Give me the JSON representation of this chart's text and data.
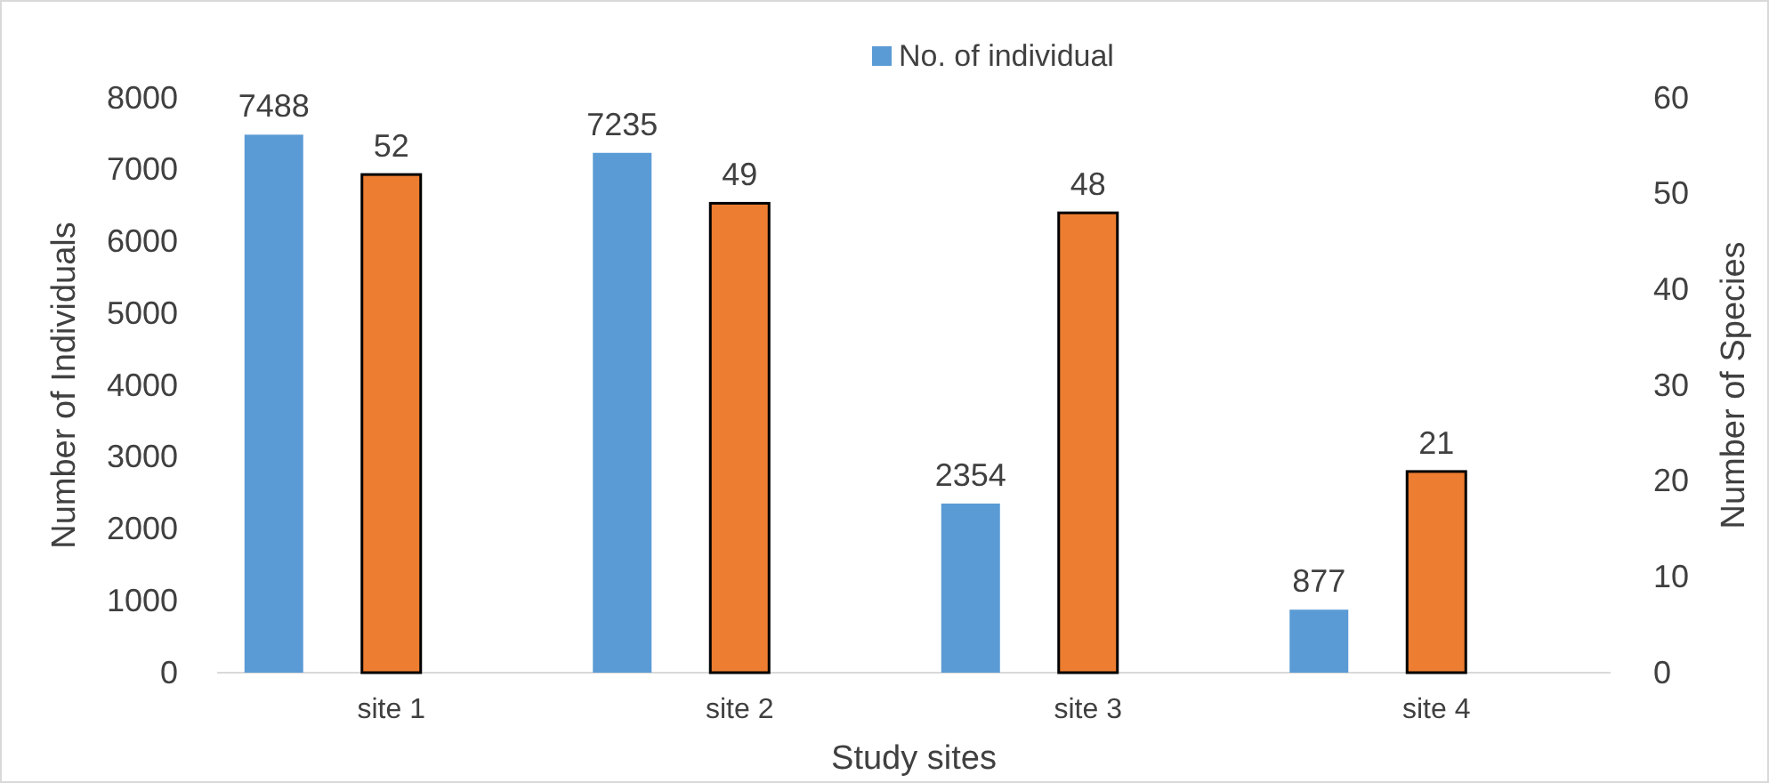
{
  "chart_data": {
    "type": "bar",
    "xlabel": "Study sites",
    "ylabel": "Number of Individuals",
    "y2label": "Number  of Species",
    "categories": [
      "site 1",
      "site 2",
      "site 3",
      "site 4"
    ],
    "series": [
      {
        "name": "No. of individual",
        "color": "#5b9bd5",
        "values": [
          7488,
          7235,
          2354,
          877
        ]
      },
      {
        "color": "#ed7d31",
        "values": [
          52,
          49,
          48,
          21
        ],
        "axis": "y2"
      }
    ],
    "ylim": [
      0,
      8000
    ],
    "yticks": [
      0,
      1000,
      2000,
      3000,
      4000,
      5000,
      6000,
      7000,
      8000
    ],
    "y2lim": [
      0,
      60
    ],
    "y2ticks": [
      0,
      10,
      20,
      30,
      40,
      50,
      60
    ],
    "data_labels": true,
    "legend": "top",
    "grid": false
  }
}
